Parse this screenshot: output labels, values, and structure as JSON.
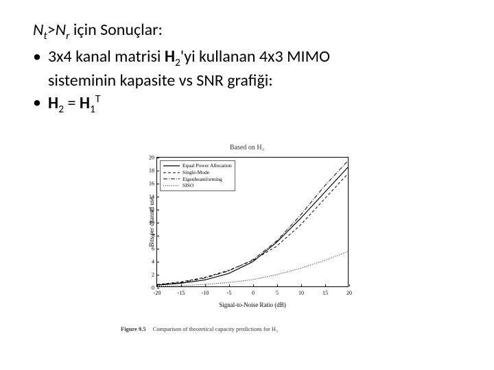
{
  "text": {
    "line1_pre_italic1": "N",
    "line1_sub1": "t",
    "line1_gt": ">",
    "line1_pre_italic2": "N",
    "line1_sub2": "r",
    "line1_rest": " için Sonuçlar:",
    "bullet1_a": "3x4 kanal matrisi ",
    "bullet1_b_bold": "H",
    "bullet1_b_sub": "2",
    "bullet1_c": "'yi kullanan 4x3 MIMO ",
    "bullet1_d": "sisteminin kapasite vs SNR grafiği:",
    "bullet2_a_bold": "H",
    "bullet2_a_sub": "2",
    "bullet2_eq": " = ",
    "bullet2_b_bold": "H",
    "bullet2_b_sub": "1",
    "bullet2_b_sup": "T",
    "bullet_marker": "•"
  },
  "chart": {
    "type": "line",
    "title": "Based on H₂",
    "xlabel": "Signal-to-Noise Ratio (dB)",
    "ylabel": "Bits per channel use",
    "xlim": [
      -20,
      20
    ],
    "ylim": [
      0,
      20
    ],
    "xticks": [
      -20,
      -15,
      -10,
      -5,
      0,
      5,
      10,
      15,
      20
    ],
    "yticks": [
      0,
      2,
      4,
      6,
      8,
      10,
      12,
      14,
      16,
      18,
      20
    ],
    "background_color": "#ffffff",
    "axis_color": "#000000",
    "series": [
      {
        "name": "Equal Power Allocation",
        "color": "#000000",
        "dash": "solid",
        "width": 1.2,
        "x": [
          -20,
          -15,
          -10,
          -5,
          0,
          5,
          10,
          15,
          20
        ],
        "y": [
          0.2,
          0.5,
          1.0,
          2.0,
          3.8,
          6.8,
          10.5,
          14.5,
          18.5
        ]
      },
      {
        "name": "Single-Mode",
        "color": "#000000",
        "dash": "4 3",
        "width": 1.0,
        "x": [
          -20,
          -15,
          -10,
          -5,
          0,
          5,
          10,
          15,
          20
        ],
        "y": [
          0.3,
          0.7,
          1.4,
          2.5,
          4.0,
          6.2,
          9.5,
          13.5,
          17.5
        ]
      },
      {
        "name": "Eigenbeamforming",
        "color": "#000000",
        "dash": "6 2 1 2",
        "width": 1.0,
        "x": [
          -20,
          -15,
          -10,
          -5,
          0,
          5,
          10,
          15,
          20
        ],
        "y": [
          0.25,
          0.6,
          1.3,
          2.4,
          4.1,
          7.0,
          11.0,
          15.5,
          19.5
        ]
      },
      {
        "name": "SISO",
        "color": "#000000",
        "dash": "1 2",
        "width": 1.0,
        "x": [
          -20,
          -15,
          -10,
          -5,
          0,
          5,
          10,
          15,
          20
        ],
        "y": [
          0.05,
          0.12,
          0.3,
          0.6,
          1.05,
          1.8,
          2.8,
          4.0,
          5.4
        ]
      }
    ],
    "caption_label": "Figure 9.5",
    "caption_text": "Comparison of theoretical capacity predictions for H₂"
  }
}
